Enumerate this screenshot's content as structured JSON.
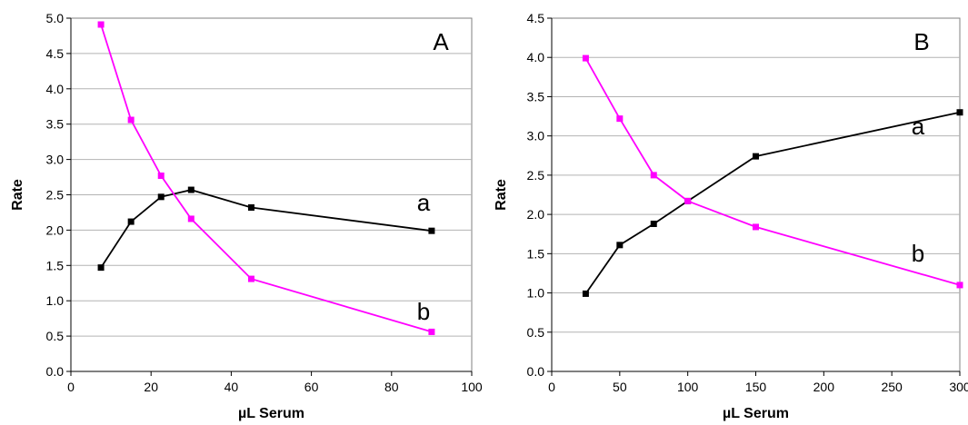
{
  "chart_data": [
    {
      "type": "line",
      "panel_label": "A",
      "xlabel": "µL Serum",
      "ylabel": "Rate",
      "xlim": [
        0,
        100
      ],
      "ylim": [
        0,
        5
      ],
      "x_ticks": [
        0,
        20,
        40,
        60,
        80,
        100
      ],
      "y_ticks": [
        "0.0",
        "0.5",
        "1.0",
        "1.5",
        "2.0",
        "2.5",
        "3.0",
        "3.5",
        "4.0",
        "4.5",
        "5.0"
      ],
      "grid": "horizontal",
      "series": [
        {
          "name": "a",
          "color": "#000000",
          "x": [
            7.5,
            15,
            22.5,
            30,
            45,
            90
          ],
          "y": [
            1.47,
            2.12,
            2.47,
            2.57,
            2.32,
            1.99
          ]
        },
        {
          "name": "b",
          "color": "#ff00ff",
          "x": [
            7.5,
            15,
            22.5,
            30,
            45,
            90
          ],
          "y": [
            4.91,
            3.56,
            2.77,
            2.16,
            1.31,
            0.56
          ]
        }
      ]
    },
    {
      "type": "line",
      "panel_label": "B",
      "xlabel": "µL Serum",
      "ylabel": "Rate",
      "xlim": [
        0,
        300
      ],
      "ylim": [
        0,
        4.5
      ],
      "x_ticks": [
        0,
        50,
        100,
        150,
        200,
        250,
        300
      ],
      "y_ticks": [
        "0.0",
        "0.5",
        "1.0",
        "1.5",
        "2.0",
        "2.5",
        "3.0",
        "3.5",
        "4.0",
        "4.5"
      ],
      "grid": "horizontal",
      "series": [
        {
          "name": "a",
          "color": "#000000",
          "x": [
            25,
            50,
            75,
            100,
            150,
            300
          ],
          "y": [
            0.99,
            1.61,
            1.88,
            2.17,
            2.74,
            3.3
          ]
        },
        {
          "name": "b",
          "color": "#ff00ff",
          "x": [
            25,
            50,
            75,
            100,
            150,
            300
          ],
          "y": [
            3.99,
            3.22,
            2.5,
            2.17,
            1.84,
            1.1
          ]
        }
      ]
    }
  ]
}
